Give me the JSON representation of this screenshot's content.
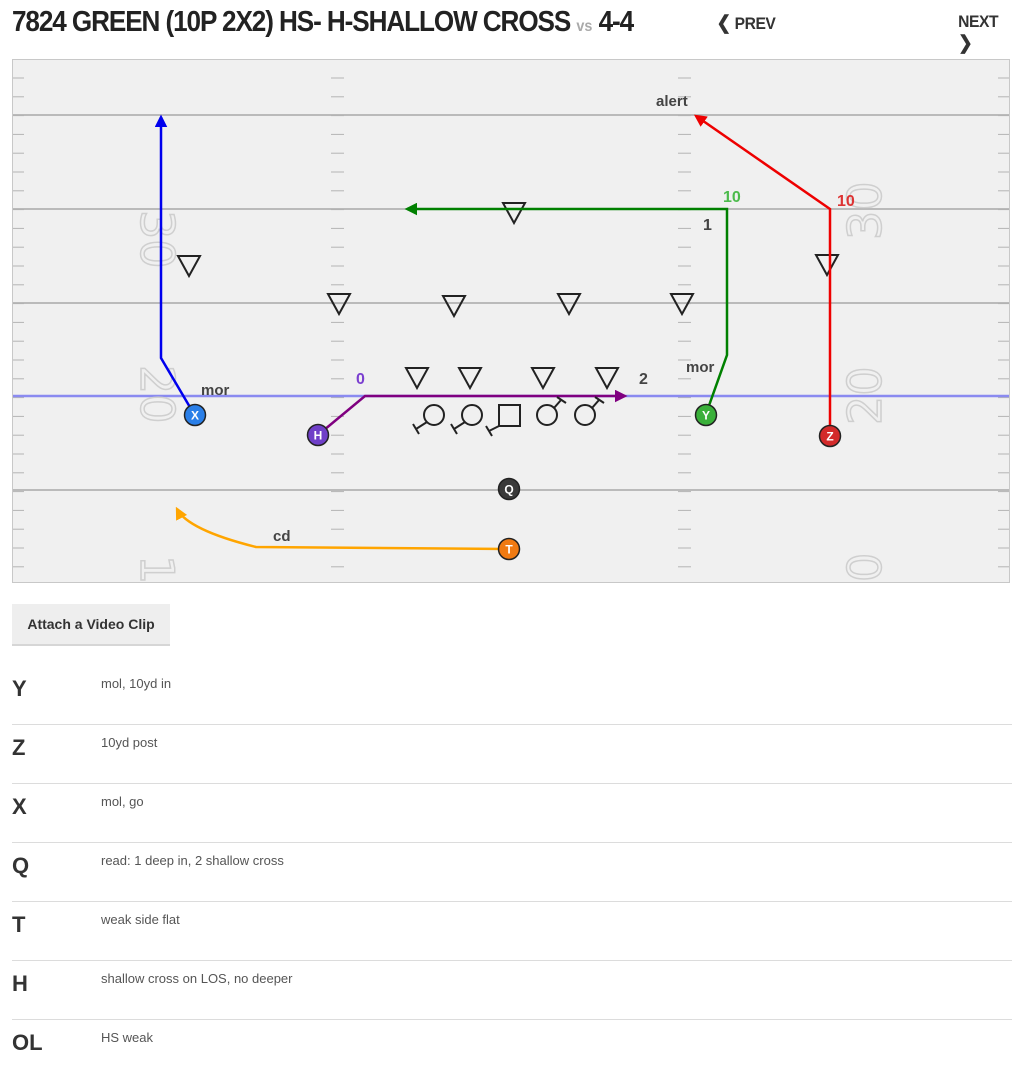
{
  "header": {
    "play_name": "7824 GREEN (10P 2X2) HS- H-SHALLOW CROSS",
    "vs_label": "vs",
    "defense": "4-4",
    "prev_label": "PREV",
    "next_label": "NEXT"
  },
  "field": {
    "yard_numbers": [
      "30",
      "30",
      "20",
      "20",
      "1",
      "0"
    ],
    "route_labels": {
      "alert": "alert",
      "y_depth": "10",
      "z_depth": "10",
      "read_1": "1",
      "read_2": "2",
      "h_depth": "0",
      "x_mor": "mor",
      "y_mor": "mor",
      "t_cd": "cd"
    },
    "players": {
      "x": "X",
      "h": "H",
      "y": "Y",
      "z": "Z",
      "q": "Q",
      "t": "T"
    },
    "colors": {
      "x": "#0000ee",
      "h": "#800080",
      "y": "#008000",
      "z": "#ee0000",
      "t": "#ffa500",
      "los": "#8a8af0"
    }
  },
  "actions": {
    "attach_video": "Attach a Video Clip"
  },
  "assignments": [
    {
      "position": "Y",
      "text": "mol, 10yd in"
    },
    {
      "position": "Z",
      "text": "10yd post"
    },
    {
      "position": "X",
      "text": "mol, go"
    },
    {
      "position": "Q",
      "text": "read: 1 deep in, 2 shallow cross"
    },
    {
      "position": "T",
      "text": "weak side flat"
    },
    {
      "position": "H",
      "text": "shallow cross on LOS, no deeper"
    },
    {
      "position": "OL",
      "text": "HS weak"
    }
  ]
}
